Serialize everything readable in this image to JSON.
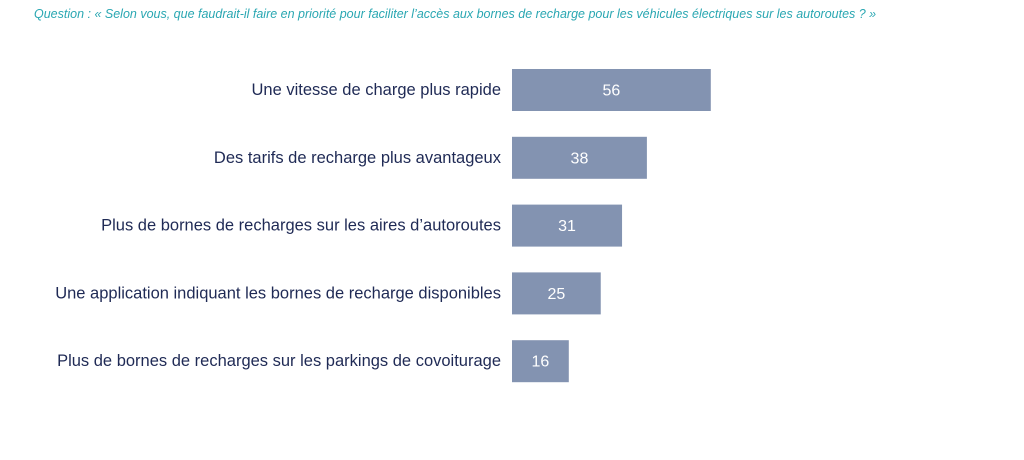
{
  "question": "Question : « Selon vous, que faudrait-il faire en priorité pour faciliter l’accès aux bornes de recharge pour les véhicules électriques sur les autoroutes ? »",
  "colors": {
    "bar": "#8393b1",
    "question_text": "#2aa7b2",
    "category_text": "#1f2a55",
    "value_text": "#ffffff"
  },
  "chart_data": {
    "type": "bar",
    "orientation": "horizontal",
    "categories": [
      "Une vitesse de charge plus rapide",
      "Des tarifs de recharge plus avantageux",
      "Plus de bornes de recharges sur les aires d’autoroutes",
      "Une application indiquant les bornes de recharge disponibles",
      "Plus de bornes de recharges sur les parkings de covoiturage"
    ],
    "values": [
      56,
      38,
      31,
      25,
      16
    ],
    "data_labels": [
      "56",
      "38",
      "31",
      "25",
      "16"
    ],
    "title": "",
    "xlabel": "",
    "ylabel": "",
    "xlim": [
      0,
      56
    ],
    "grid": false,
    "legend": "none"
  }
}
